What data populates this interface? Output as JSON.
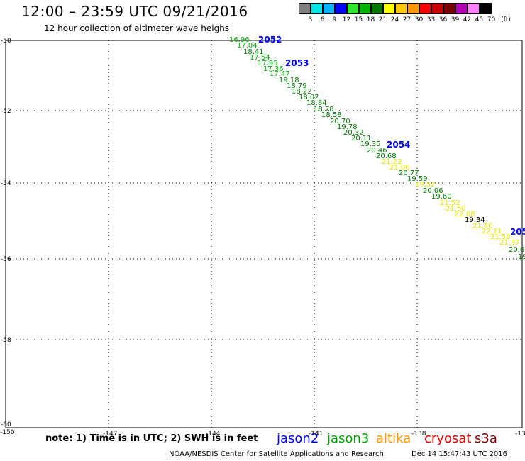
{
  "title": "12:00 – 23:59 UTC 09/21/2016",
  "subtitle": "12 hour collection of altimeter wave heighs",
  "legend": {
    "labels": [
      "3",
      "6",
      "9",
      "12",
      "15",
      "18",
      "21",
      "24",
      "27",
      "30",
      "33",
      "36",
      "39",
      "42",
      "45",
      "70"
    ],
    "unit": "(ft)",
    "colors": [
      "#808080",
      "#00e5e5",
      "#00b4ff",
      "#0000ff",
      "#2ee62e",
      "#00b400",
      "#007800",
      "#ffff00",
      "#ffc800",
      "#ff9600",
      "#ff0000",
      "#c80000",
      "#780000",
      "#b400b4",
      "#ff80ff",
      "#000000"
    ]
  },
  "lat_labels": [
    "-50",
    "-52",
    "-54",
    "-56",
    "-58",
    "-60"
  ],
  "lon_labels": [
    "-150",
    "-147",
    "-144",
    "-141",
    "-138",
    "-13"
  ],
  "passes": [
    {
      "label": "2052",
      "color": "#0000ff"
    },
    {
      "label": "2053",
      "color": "#0000ff"
    },
    {
      "label": "2054",
      "color": "#0000ff"
    },
    {
      "label": "205",
      "color": "#0000ff"
    }
  ],
  "observations": [
    {
      "v": "16.96",
      "c": "#00b400"
    },
    {
      "v": "17.04",
      "c": "#00b400"
    },
    {
      "v": "18.41",
      "c": "#007800"
    },
    {
      "v": "17.54",
      "c": "#00b400"
    },
    {
      "v": "17.95",
      "c": "#00b400"
    },
    {
      "v": "17.36",
      "c": "#00b400"
    },
    {
      "v": "17.47",
      "c": "#00b400"
    },
    {
      "v": "19.18",
      "c": "#007800"
    },
    {
      "v": "18.79",
      "c": "#007800"
    },
    {
      "v": "18.22",
      "c": "#007800"
    },
    {
      "v": "18.02",
      "c": "#007800"
    },
    {
      "v": "18.84",
      "c": "#007800"
    },
    {
      "v": "18.78",
      "c": "#007800"
    },
    {
      "v": "18.58",
      "c": "#007800"
    },
    {
      "v": "20.70",
      "c": "#007800"
    },
    {
      "v": "19.78",
      "c": "#007800"
    },
    {
      "v": "20.32",
      "c": "#007800"
    },
    {
      "v": "20.11",
      "c": "#007800"
    },
    {
      "v": "19.35",
      "c": "#007800"
    },
    {
      "v": "20.46",
      "c": "#007800"
    },
    {
      "v": "20.68",
      "c": "#007800"
    },
    {
      "v": "21.22",
      "c": "#e8e800"
    },
    {
      "v": "21.06",
      "c": "#e8e800"
    },
    {
      "v": "20.77",
      "c": "#007800"
    },
    {
      "v": "19.59",
      "c": "#007800"
    },
    {
      "v": "19.52",
      "c": "#e8e800"
    },
    {
      "v": "20.06",
      "c": "#007800"
    },
    {
      "v": "19.60",
      "c": "#007800"
    },
    {
      "v": "21.52",
      "c": "#e8e800"
    },
    {
      "v": "21.50",
      "c": "#e8e800"
    },
    {
      "v": "22.08",
      "c": "#e8e800"
    },
    {
      "v": "19.34",
      "c": "#000000"
    },
    {
      "v": "21.40",
      "c": "#e8e800"
    },
    {
      "v": "22.11",
      "c": "#e8e800"
    },
    {
      "v": "21.58",
      "c": "#e8e800"
    },
    {
      "v": "21.37",
      "c": "#e8e800"
    },
    {
      "v": "20.6",
      "c": "#007800"
    },
    {
      "v": "19",
      "c": "#007800"
    }
  ],
  "footer": {
    "note": "note: 1) Time is in UTC; 2) SWH is in feet",
    "satellites": [
      {
        "name": "jason2",
        "color": "#0000ff"
      },
      {
        "name": "jason3",
        "color": "#00a000"
      },
      {
        "name": "altika",
        "color": "#ff9600"
      },
      {
        "name": "cryosat",
        "color": "#e00000"
      },
      {
        "name": "s3a",
        "color": "#800000"
      }
    ],
    "credit": "NOAA/NESDIS Center for Satellite Applications and Research",
    "timestamp": "Dec 14 15:47:43 UTC 2016"
  }
}
